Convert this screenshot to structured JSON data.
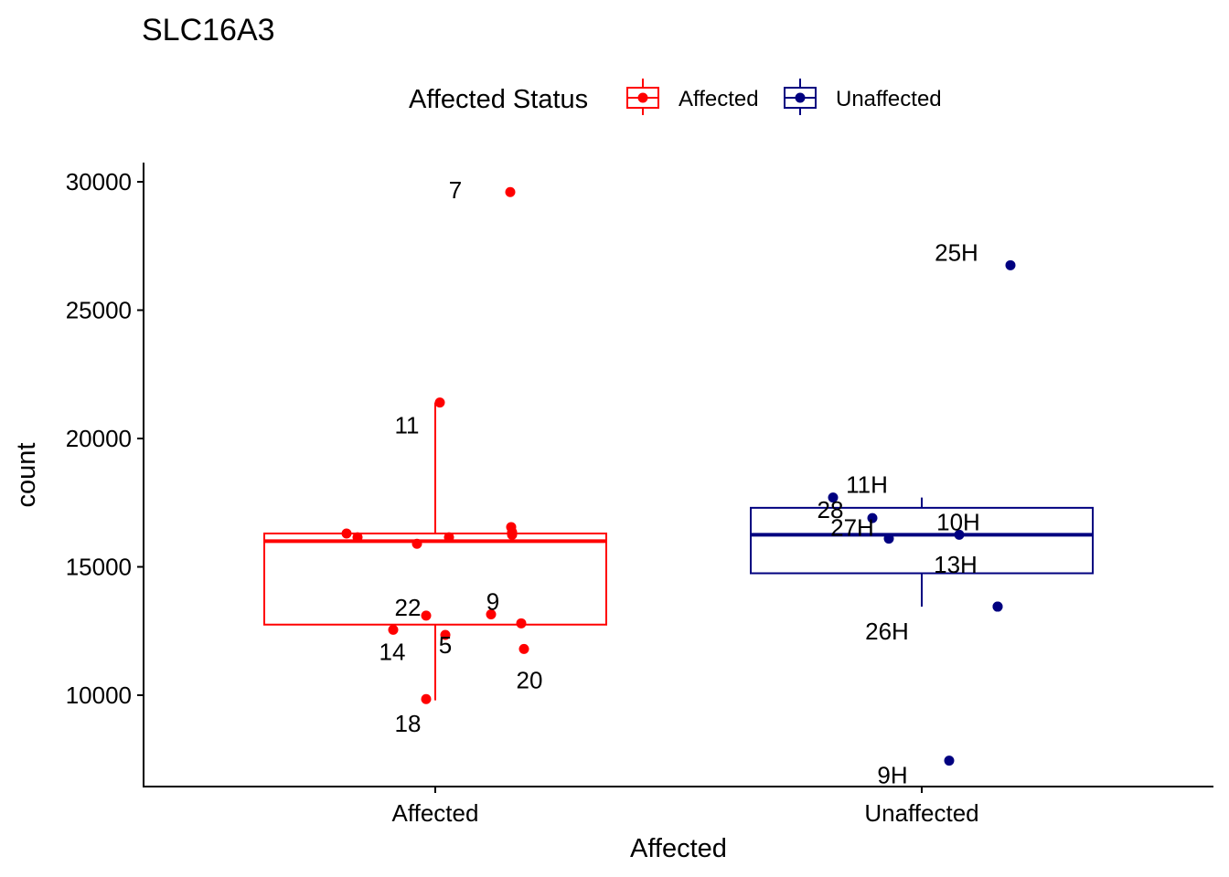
{
  "chart_data": {
    "type": "box",
    "title": "SLC16A3",
    "xlabel": "Affected",
    "ylabel": "count",
    "ylim": [
      6500,
      30700
    ],
    "yticks": [
      10000,
      15000,
      20000,
      25000,
      30000
    ],
    "categories": [
      "Affected",
      "Unaffected"
    ],
    "legend": {
      "title": "Affected Status",
      "placement": "top",
      "entries": [
        {
          "label": "Affected",
          "color": "#ff0000"
        },
        {
          "label": "Unaffected",
          "color": "#000080"
        }
      ]
    },
    "series": [
      {
        "name": "Affected",
        "category": "Affected",
        "color": "#ff0000",
        "box": {
          "lower_whisker": 9800,
          "q1": 12750,
          "median": 16000,
          "q3": 16300,
          "upper_whisker": 21400
        },
        "points": [
          {
            "label": "7",
            "y": 29600
          },
          {
            "label": "11",
            "y": 21400
          },
          {
            "label": "",
            "y": 16550
          },
          {
            "label": "",
            "y": 16350
          },
          {
            "label": "",
            "y": 16300
          },
          {
            "label": "",
            "y": 16250
          },
          {
            "label": "",
            "y": 16150
          },
          {
            "label": "",
            "y": 16150
          },
          {
            "label": "",
            "y": 15900
          },
          {
            "label": "22",
            "y": 13100
          },
          {
            "label": "9",
            "y": 13150
          },
          {
            "label": "",
            "y": 12800
          },
          {
            "label": "14",
            "y": 12550
          },
          {
            "label": "5",
            "y": 12350
          },
          {
            "label": "20",
            "y": 11800
          },
          {
            "label": "18",
            "y": 9850
          }
        ]
      },
      {
        "name": "Unaffected",
        "category": "Unaffected",
        "color": "#000080",
        "box": {
          "lower_whisker": 13450,
          "q1": 14750,
          "median": 16250,
          "q3": 17300,
          "upper_whisker": 17700
        },
        "points": [
          {
            "label": "25H",
            "y": 26750
          },
          {
            "label": "11H",
            "y": 17700
          },
          {
            "label": "28",
            "y": 16900
          },
          {
            "label": "27H",
            "y": 16100
          },
          {
            "label": "10H",
            "y": 16250
          },
          {
            "label": "13H",
            "y": 13450
          },
          {
            "label": "26H",
            "y": 13450
          },
          {
            "label": "9H",
            "y": 7450
          }
        ]
      }
    ]
  }
}
